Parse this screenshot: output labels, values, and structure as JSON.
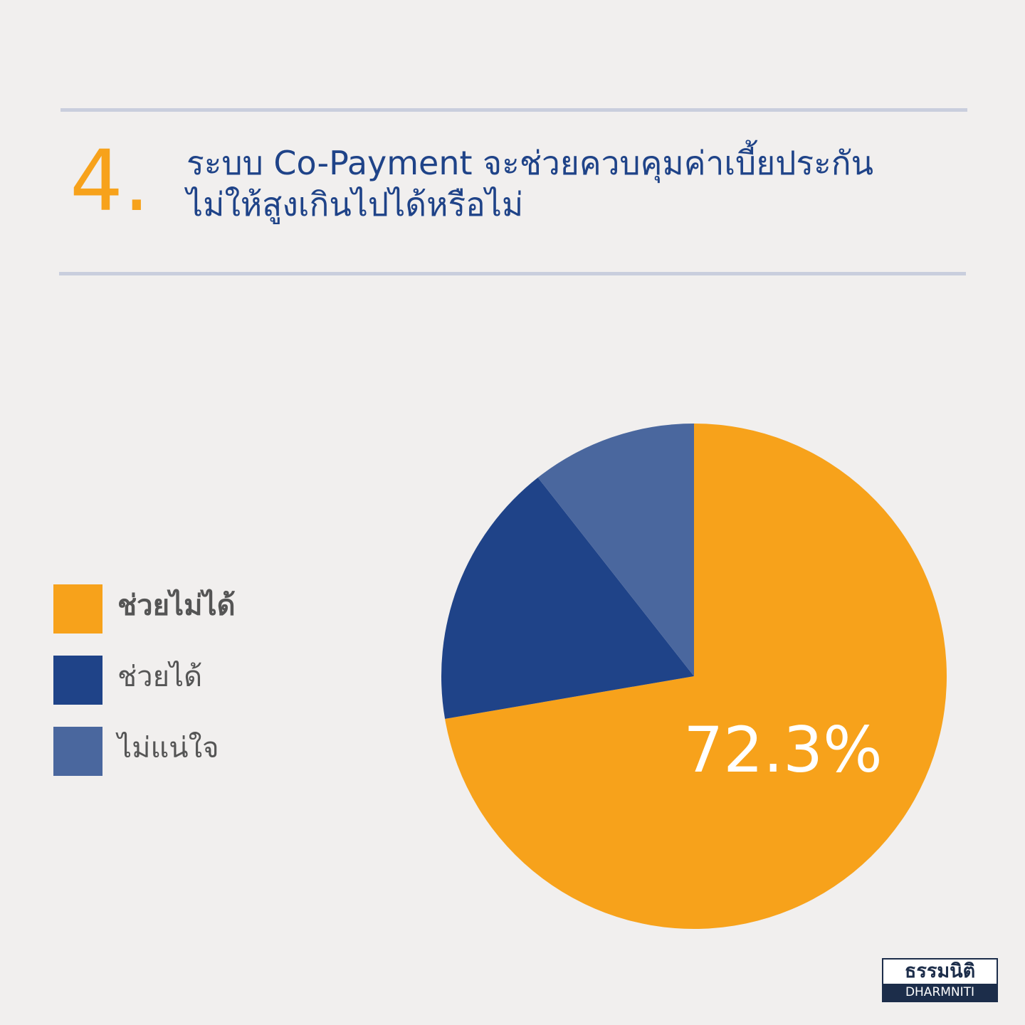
{
  "header": {
    "number": "4.",
    "title_lines": [
      "ระบบ Co-Payment จะช่วยควบคุมค่าเบี้ยประกัน",
      "ไม่ให้สูงเกินไปได้หรือไม่"
    ]
  },
  "chart_data": {
    "type": "pie",
    "categories": [
      "ช่วยไม่ได้",
      "ช่วยได้",
      "ไม่แน่ใจ"
    ],
    "values": [
      72.3,
      17.1,
      10.6
    ],
    "value_labels": [
      "72.3%",
      null,
      null
    ],
    "colors": [
      "#f7a21b",
      "#1f4388",
      "#4a679e"
    ]
  },
  "logo": {
    "thai": "ธรรมนิติ",
    "english": "DHARMNITI"
  }
}
